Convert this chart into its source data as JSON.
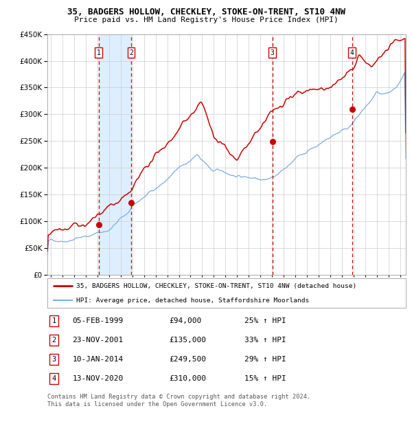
{
  "title1": "35, BADGERS HOLLOW, CHECKLEY, STOKE-ON-TRENT, ST10 4NW",
  "title2": "Price paid vs. HM Land Registry's House Price Index (HPI)",
  "red_line_label": "35, BADGERS HOLLOW, CHECKLEY, STOKE-ON-TRENT, ST10 4NW (detached house)",
  "blue_line_label": "HPI: Average price, detached house, Staffordshire Moorlands",
  "footnote1": "Contains HM Land Registry data © Crown copyright and database right 2024.",
  "footnote2": "This data is licensed under the Open Government Licence v3.0.",
  "transactions": [
    {
      "num": 1,
      "date": "05-FEB-1999",
      "price": "£94,000",
      "pct": "25% ↑ HPI",
      "year": 1999.1
    },
    {
      "num": 2,
      "date": "23-NOV-2001",
      "price": "£135,000",
      "pct": "33% ↑ HPI",
      "year": 2001.9
    },
    {
      "num": 3,
      "date": "10-JAN-2014",
      "price": "£249,500",
      "pct": "29% ↑ HPI",
      "year": 2014.03
    },
    {
      "num": 4,
      "date": "13-NOV-2020",
      "price": "£310,000",
      "pct": "15% ↑ HPI",
      "year": 2020.87
    }
  ],
  "sale_prices": [
    94000,
    135000,
    249500,
    310000
  ],
  "ylim": [
    0,
    450000
  ],
  "xlim_start": 1994.7,
  "xlim_end": 2025.5,
  "red_color": "#cc0000",
  "blue_color": "#7aace0",
  "shade_color": "#ddeeff",
  "grid_color": "#cccccc",
  "box_color": "#cc0000",
  "background": "#ffffff",
  "seed": 42
}
